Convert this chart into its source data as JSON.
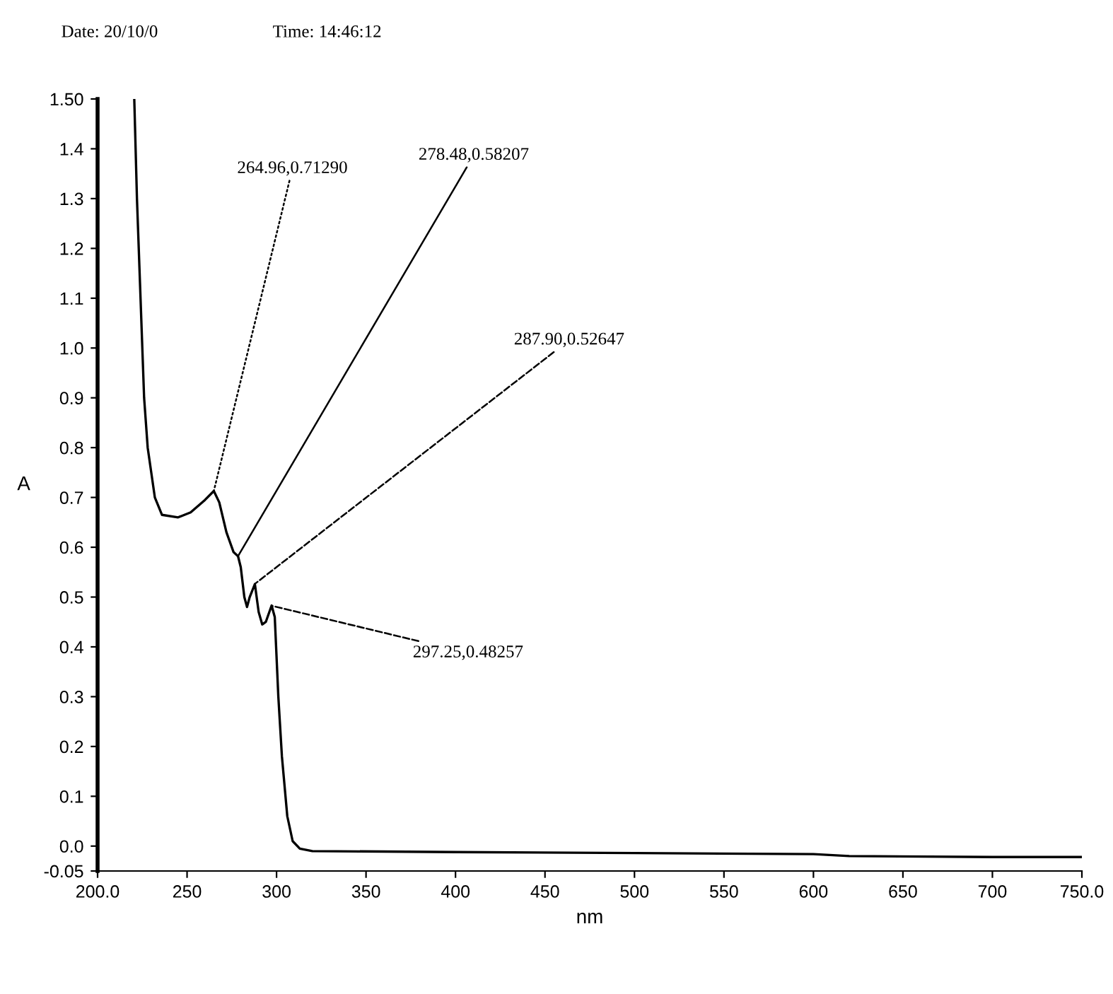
{
  "chart_data": {
    "type": "line",
    "xlabel": "nm",
    "ylabel": "A",
    "annotations": [
      "Date: 20/10/0",
      "Time: 14:46:12",
      {
        "text": "264.96,0.71290",
        "x": 264.96,
        "y": 0.7129
      },
      {
        "text": "278.48,0.58207",
        "x": 278.48,
        "y": 0.58207
      },
      {
        "text": "287.90,0.52647",
        "x": 287.9,
        "y": 0.52647
      },
      {
        "text": "297.25,0.48257",
        "x": 297.25,
        "y": 0.48257
      }
    ],
    "x": [
      220.5,
      222,
      224,
      226,
      228,
      232,
      236,
      245,
      252,
      260,
      264.96,
      268,
      272,
      276,
      278.48,
      280,
      282,
      283.5,
      285,
      287.9,
      290,
      292,
      294,
      297.25,
      299,
      301,
      303,
      306,
      309,
      313,
      320,
      400,
      500,
      600,
      620,
      700,
      750
    ],
    "series": [
      {
        "color": "#000000",
        "values": [
          1.5,
          1.3,
          1.1,
          0.9,
          0.8,
          0.7,
          0.665,
          0.66,
          0.67,
          0.695,
          0.713,
          0.69,
          0.63,
          0.59,
          0.582,
          0.56,
          0.5,
          0.48,
          0.5,
          0.526,
          0.47,
          0.445,
          0.45,
          0.483,
          0.46,
          0.3,
          0.18,
          0.06,
          0.01,
          -0.005,
          -0.01,
          -0.012,
          -0.014,
          -0.016,
          -0.02,
          -0.022,
          -0.022
        ]
      }
    ],
    "xlim": [
      200,
      750
    ],
    "ylim": [
      -0.05,
      1.5
    ],
    "xticks": [
      {
        "value": 200,
        "label": "200.0"
      },
      250,
      300,
      350,
      400,
      450,
      500,
      550,
      600,
      650,
      700,
      {
        "value": 750,
        "label": "750.0"
      }
    ],
    "yticks": [
      {
        "value": -0.05,
        "label": "-0.05"
      },
      {
        "value": 0,
        "label": "0.0"
      },
      0.1,
      0.2,
      0.3,
      0.4,
      0.5,
      0.6,
      0.7,
      0.8,
      0.9,
      {
        "value": 1.0,
        "label": "1.0"
      },
      1.1,
      1.2,
      1.3,
      1.4,
      {
        "value": 1.5,
        "label": "1.50"
      }
    ],
    "grid": false,
    "legend": false,
    "marker": "none",
    "line_style": "solid"
  }
}
